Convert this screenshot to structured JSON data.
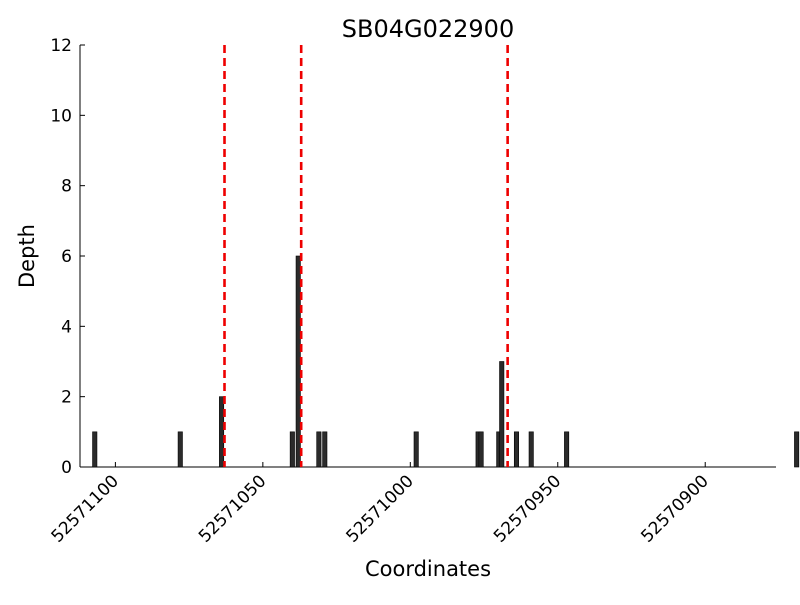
{
  "chart_data": {
    "type": "bar",
    "title": "SB04G022900",
    "xlabel": "Coordinates",
    "ylabel": "Depth",
    "x_reversed": true,
    "xlim": [
      52571112,
      52570876
    ],
    "ylim": [
      0,
      12
    ],
    "xticks": [
      52571100,
      52571050,
      52571000,
      52570950,
      52570900
    ],
    "xtick_labels": [
      "52571100",
      "52571050",
      "52571000",
      "52570950",
      "52570900"
    ],
    "yticks": [
      0,
      2,
      4,
      6,
      8,
      10,
      12
    ],
    "ytick_labels": [
      "0",
      "2",
      "4",
      "6",
      "8",
      "10",
      "12"
    ],
    "bar_color": "#2b2b2b",
    "vline_color": "#ee0000",
    "vline_style": "dashed",
    "grid": false,
    "bars": [
      {
        "x": 52571107,
        "depth": 1
      },
      {
        "x": 52571078,
        "depth": 1
      },
      {
        "x": 52571064,
        "depth": 2
      },
      {
        "x": 52571040,
        "depth": 1
      },
      {
        "x": 52571038,
        "depth": 6
      },
      {
        "x": 52571031,
        "depth": 1
      },
      {
        "x": 52571029,
        "depth": 1
      },
      {
        "x": 52570998,
        "depth": 1
      },
      {
        "x": 52570977,
        "depth": 1
      },
      {
        "x": 52570976,
        "depth": 1
      },
      {
        "x": 52570970,
        "depth": 1
      },
      {
        "x": 52570969,
        "depth": 3
      },
      {
        "x": 52570964,
        "depth": 1
      },
      {
        "x": 52570959,
        "depth": 1
      },
      {
        "x": 52570947,
        "depth": 1
      },
      {
        "x": 52570869,
        "depth": 1
      }
    ],
    "vlines": [
      52571063,
      52571037,
      52570967
    ]
  }
}
